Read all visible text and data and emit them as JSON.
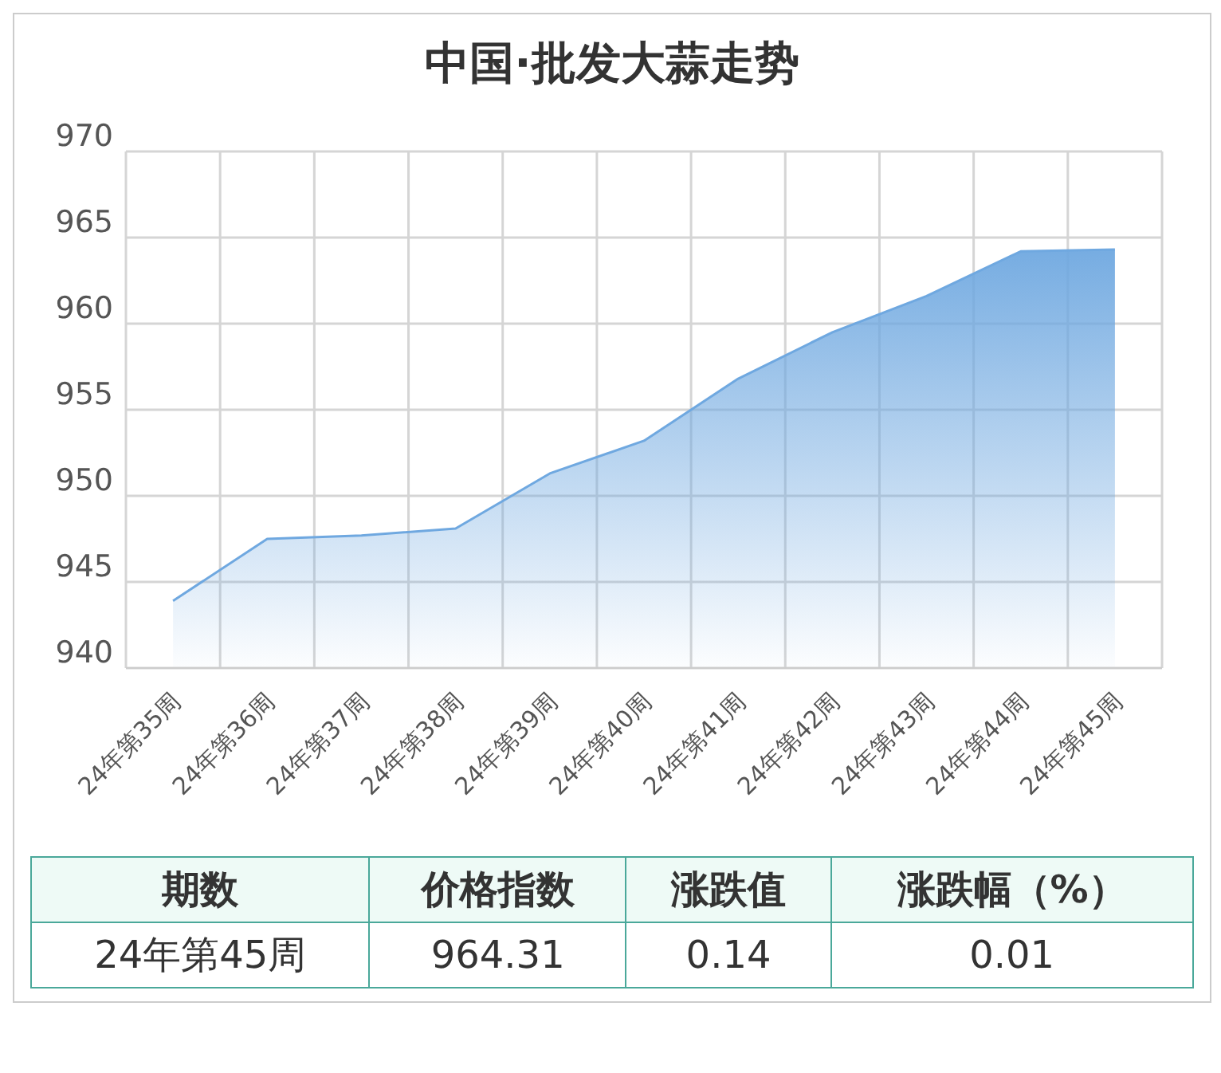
{
  "chart_data": {
    "type": "area",
    "title": "中国·批发大蒜走势",
    "categories": [
      "24年第35周",
      "24年第36周",
      "24年第37周",
      "24年第38周",
      "24年第39周",
      "24年第40周",
      "24年第41周",
      "24年第42周",
      "24年第43周",
      "24年第44周",
      "24年第45周"
    ],
    "series": [
      {
        "color": "#6fa8e0",
        "values": [
          943.9,
          947.5,
          947.7,
          948.1,
          951.3,
          953.2,
          956.8,
          959.5,
          961.6,
          964.2,
          964.3
        ]
      }
    ],
    "ylim": [
      940,
      970
    ],
    "yticks": [
      940,
      945,
      950,
      955,
      960,
      965,
      970
    ],
    "grid": true,
    "marker": "none",
    "annotations": [
      "期数",
      "价格指数",
      "涨跌值",
      "涨跌幅（%）",
      "24年第45周",
      "964.31",
      "0.14",
      "0.01"
    ]
  }
}
